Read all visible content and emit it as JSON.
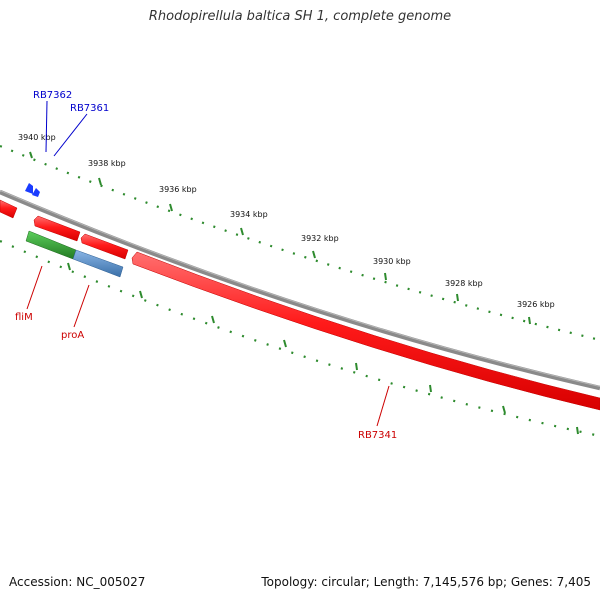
{
  "title": "Rhodopirellula baltica SH 1, complete genome",
  "footer": {
    "accession": "Accession: NC_005027",
    "summary": "Topology: circular; Length: 7,145,576 bp; Genes: 7,405"
  },
  "ruler": {
    "unit_labels": [
      "3940 kbp",
      "3938 kbp",
      "3936 kbp",
      "3934 kbp",
      "3932 kbp",
      "3930 kbp",
      "3928 kbp",
      "3926 kbp"
    ]
  },
  "genes": {
    "RB7362": "RB7362",
    "RB7361": "RB7361",
    "fliM": "fliM",
    "proA": "proA",
    "RB7341": "RB7341"
  },
  "colors": {
    "backbone": "#8a8a8a",
    "gene_red": "#ff2020",
    "gene_green": "#2e9e2e",
    "gene_blue": "#5a8fc8",
    "tick_green": "#2e8b2e",
    "label_blue": "#0000cc",
    "label_red": "#cc0000"
  }
}
